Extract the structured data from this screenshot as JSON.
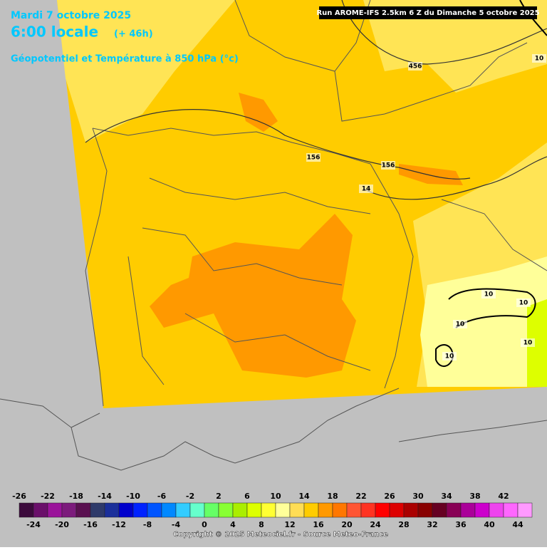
{
  "header": {
    "date": "Mardi 7 octobre 2025",
    "time": "6:00 locale",
    "lead": "(+ 46h)",
    "field": "Géopotentiel et Température à 850 hPa (°c)"
  },
  "run_info": "Run AROME-IFS 2.5km 6 Z du Dimanche 5 octobre 2025",
  "contour_labels": [
    "456",
    "156",
    "156",
    "14",
    "10",
    "10",
    "10",
    "10",
    "10",
    "10"
  ],
  "legend": {
    "top_labels": [
      -26,
      -22,
      -18,
      -14,
      -10,
      -6,
      -2,
      2,
      6,
      10,
      14,
      18,
      22,
      26,
      30,
      34,
      38,
      42
    ],
    "bottom_labels": [
      -24,
      -20,
      -16,
      -12,
      -8,
      -4,
      0,
      4,
      8,
      12,
      16,
      20,
      24,
      28,
      32,
      36,
      40,
      44
    ],
    "colors": [
      "#3c0a3c",
      "#6a0f6a",
      "#9a129a",
      "#7c1b7c",
      "#5a1050",
      "#2e3a6a",
      "#1a2f9a",
      "#0000cc",
      "#0022ff",
      "#0055ff",
      "#0088ff",
      "#33ccff",
      "#66ffcc",
      "#66ff66",
      "#88ff33",
      "#aaee00",
      "#ddff00",
      "#ffff33",
      "#ffff99",
      "#ffdd55",
      "#ffcc00",
      "#ff9900",
      "#ff7700",
      "#ff5533",
      "#ff3322",
      "#ff0000",
      "#dd0000",
      "#aa0000",
      "#880000",
      "#660022",
      "#880055",
      "#aa0099",
      "#cc00cc",
      "#ee44ee",
      "#ff66ff",
      "#ff99ff"
    ]
  },
  "copyright": "Copyright © 2025 Meteociel.fr - Source Meteo-France"
}
